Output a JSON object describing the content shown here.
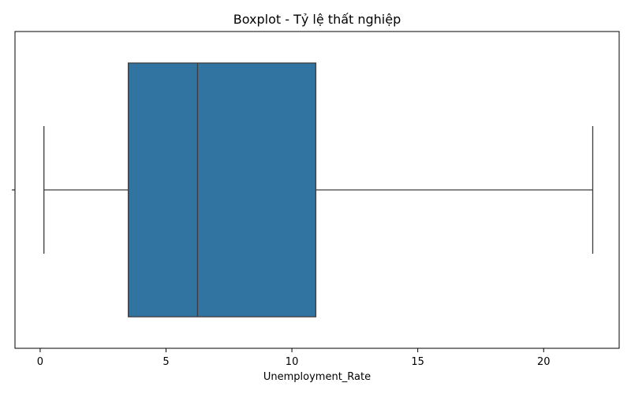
{
  "chart_data": {
    "type": "boxplot",
    "title": "Boxplot - Tỷ lệ thất nghiệp",
    "xlabel": "Unemployment_Rate",
    "ylabel": "",
    "orientation": "horizontal",
    "xlim": [
      -1,
      23
    ],
    "x_ticks": [
      0,
      5,
      10,
      15,
      20
    ],
    "series": [
      {
        "min": 0.15,
        "q1": 3.5,
        "median": 6.25,
        "q3": 10.95,
        "max": 21.95
      }
    ],
    "box_color": "#3274a1",
    "line_color": "#3d3d3d"
  }
}
